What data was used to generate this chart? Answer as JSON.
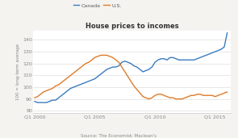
{
  "title": "House prices to incomes",
  "source": "Source: The Economist; Maclean's",
  "ylabel": "100 = long-term average",
  "canada_color": "#3a7bbf",
  "us_color": "#e07b28",
  "background_color": "#f5f3f0",
  "plot_bg_color": "#ffffff",
  "grid_color": "#e0dedd",
  "spine_color": "#cccccc",
  "tick_color": "#888888",
  "title_color": "#333333",
  "source_color": "#888888",
  "ylim": [
    78,
    148
  ],
  "xlim": [
    1999.9,
    2016.3
  ],
  "yticks": [
    80,
    90,
    100,
    110,
    120,
    130,
    140
  ],
  "xtick_positions": [
    2000,
    2005,
    2010,
    2015
  ],
  "xtick_labels": [
    "Q1 2000",
    "Q1 2005",
    "Q1 2010",
    "Q1 2015"
  ],
  "canada_x": [
    2000.0,
    2000.25,
    2000.5,
    2000.75,
    2001.0,
    2001.25,
    2001.5,
    2001.75,
    2002.0,
    2002.25,
    2002.5,
    2002.75,
    2003.0,
    2003.25,
    2003.5,
    2003.75,
    2004.0,
    2004.25,
    2004.5,
    2004.75,
    2005.0,
    2005.25,
    2005.5,
    2005.75,
    2006.0,
    2006.25,
    2006.5,
    2006.75,
    2007.0,
    2007.25,
    2007.5,
    2007.75,
    2008.0,
    2008.25,
    2008.5,
    2008.75,
    2009.0,
    2009.25,
    2009.5,
    2009.75,
    2010.0,
    2010.25,
    2010.5,
    2010.75,
    2011.0,
    2011.25,
    2011.5,
    2011.75,
    2012.0,
    2012.25,
    2012.5,
    2012.75,
    2013.0,
    2013.25,
    2013.5,
    2013.75,
    2014.0,
    2014.25,
    2014.5,
    2014.75,
    2015.0,
    2015.25,
    2015.5,
    2015.75,
    2016.0
  ],
  "canada_y": [
    88,
    87,
    87,
    87,
    87,
    88,
    89,
    89,
    91,
    93,
    95,
    97,
    99,
    100,
    101,
    102,
    103,
    104,
    105,
    106,
    107,
    109,
    111,
    113,
    115,
    116,
    117,
    117,
    118,
    121,
    122,
    121,
    120,
    118,
    117,
    115,
    113,
    114,
    115,
    117,
    121,
    123,
    124,
    124,
    123,
    125,
    125,
    124,
    123,
    123,
    123,
    123,
    123,
    123,
    124,
    125,
    126,
    127,
    128,
    129,
    130,
    131,
    132,
    134,
    146
  ],
  "us_x": [
    2000.0,
    2000.25,
    2000.5,
    2000.75,
    2001.0,
    2001.25,
    2001.5,
    2001.75,
    2002.0,
    2002.25,
    2002.5,
    2002.75,
    2003.0,
    2003.25,
    2003.5,
    2003.75,
    2004.0,
    2004.25,
    2004.5,
    2004.75,
    2005.0,
    2005.25,
    2005.5,
    2005.75,
    2006.0,
    2006.25,
    2006.5,
    2006.75,
    2007.0,
    2007.25,
    2007.5,
    2007.75,
    2008.0,
    2008.25,
    2008.5,
    2008.75,
    2009.0,
    2009.25,
    2009.5,
    2009.75,
    2010.0,
    2010.25,
    2010.5,
    2010.75,
    2011.0,
    2011.25,
    2011.5,
    2011.75,
    2012.0,
    2012.25,
    2012.5,
    2012.75,
    2013.0,
    2013.25,
    2013.5,
    2013.75,
    2014.0,
    2014.25,
    2014.5,
    2014.75,
    2015.0,
    2015.25,
    2015.5,
    2015.75,
    2016.0
  ],
  "us_y": [
    91,
    92,
    94,
    96,
    97,
    98,
    99,
    101,
    102,
    104,
    106,
    108,
    110,
    112,
    114,
    116,
    118,
    120,
    121,
    123,
    125,
    126,
    127,
    127,
    127,
    126,
    125,
    123,
    121,
    117,
    113,
    109,
    105,
    101,
    98,
    95,
    92,
    91,
    90,
    91,
    93,
    94,
    94,
    93,
    92,
    91,
    91,
    90,
    90,
    90,
    91,
    92,
    93,
    93,
    94,
    94,
    93,
    93,
    93,
    93,
    92,
    93,
    94,
    95,
    96
  ]
}
